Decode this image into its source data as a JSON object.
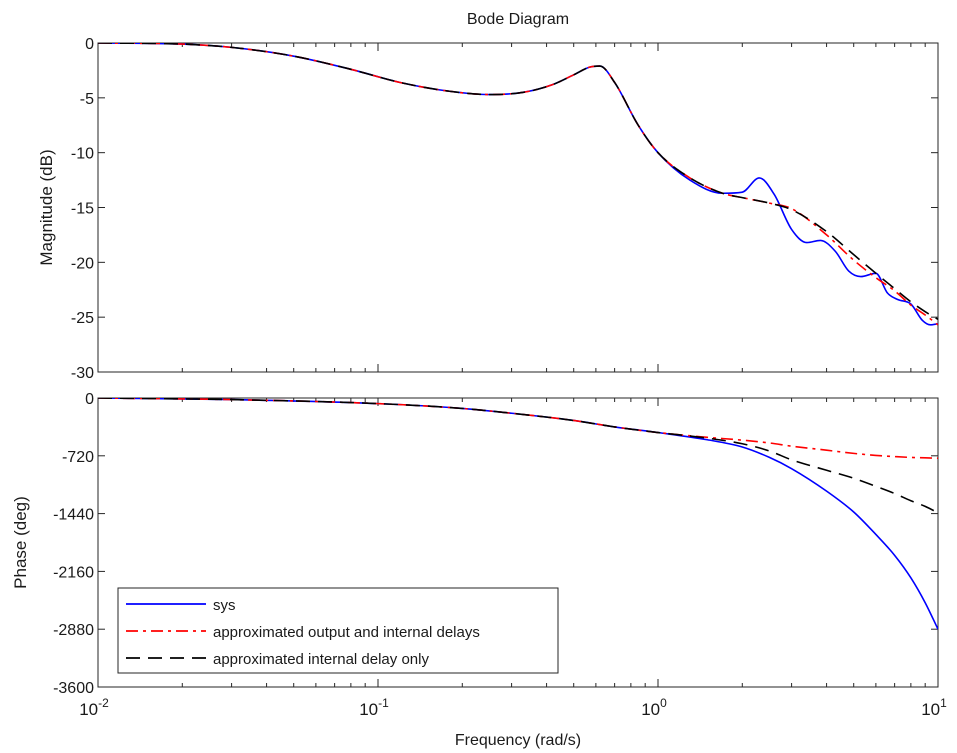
{
  "chart_data": {
    "type": "line",
    "title": "Bode Diagram",
    "xlabel": "Frequency  (rad/s)",
    "x_scale": "log",
    "xlim": [
      0.01,
      10
    ],
    "x_ticks": [
      {
        "value": 0.01,
        "base": "10",
        "exp": "-2"
      },
      {
        "value": 0.1,
        "base": "10",
        "exp": "-1"
      },
      {
        "value": 1,
        "base": "10",
        "exp": "0"
      },
      {
        "value": 10,
        "base": "10",
        "exp": "1"
      }
    ],
    "grid": false,
    "legend_position": "bottom-left",
    "series_styles": [
      {
        "name": "sys",
        "color": "#0000ff",
        "dash": "none"
      },
      {
        "name": "approximated output and internal delays",
        "color": "#ff0000",
        "dash": "dashdot"
      },
      {
        "name": "approximated internal delay only",
        "color": "#000000",
        "dash": "dashed"
      }
    ],
    "panels": [
      {
        "ylabel": "Magnitude (dB)",
        "ylim": [
          -30,
          0
        ],
        "y_ticks": [
          0,
          -5,
          -10,
          -15,
          -20,
          -25,
          -30
        ],
        "series": [
          {
            "name": "sys",
            "x": [
              0.01,
              0.02,
              0.03,
              0.05,
              0.08,
              0.12,
              0.18,
              0.25,
              0.33,
              0.42,
              0.5,
              0.57,
              0.62,
              0.7,
              0.85,
              1.0,
              1.3,
              1.7,
              2.0,
              2.3,
              2.6,
              3.0,
              3.4,
              3.8,
              4.3,
              4.8,
              5.3,
              6.0,
              6.6,
              7.2,
              8.0,
              8.8,
              9.4,
              10
            ],
            "y": [
              0,
              -0.1,
              -0.4,
              -1.2,
              -2.4,
              -3.6,
              -4.4,
              -4.7,
              -4.5,
              -3.8,
              -2.9,
              -2.2,
              -2.1,
              -3.6,
              -7.5,
              -10.0,
              -12.5,
              -13.7,
              -13.6,
              -12.3,
              -13.8,
              -17.0,
              -18.2,
              -18.0,
              -19.0,
              -20.8,
              -21.3,
              -21.0,
              -22.8,
              -23.4,
              -23.8,
              -25.3,
              -25.7,
              -25.6
            ]
          },
          {
            "name": "approximated output and internal delays",
            "x": [
              0.01,
              0.02,
              0.03,
              0.05,
              0.08,
              0.12,
              0.18,
              0.25,
              0.33,
              0.42,
              0.5,
              0.57,
              0.62,
              0.7,
              0.85,
              1.0,
              1.3,
              1.7,
              2.0,
              2.5,
              3.0,
              4.0,
              5.0,
              6.0,
              7.0,
              8.0,
              9.0,
              10
            ],
            "y": [
              0,
              -0.1,
              -0.4,
              -1.2,
              -2.4,
              -3.6,
              -4.4,
              -4.7,
              -4.5,
              -3.8,
              -2.9,
              -2.2,
              -2.1,
              -3.6,
              -7.5,
              -10.0,
              -12.3,
              -13.7,
              -14.1,
              -14.6,
              -15.1,
              -17.5,
              -19.8,
              -21.4,
              -22.6,
              -23.9,
              -24.8,
              -25.7
            ]
          },
          {
            "name": "approximated internal delay only",
            "x": [
              0.01,
              0.02,
              0.03,
              0.05,
              0.08,
              0.12,
              0.18,
              0.25,
              0.33,
              0.42,
              0.5,
              0.57,
              0.62,
              0.7,
              0.85,
              1.0,
              1.3,
              1.7,
              2.0,
              2.5,
              3.0,
              4.0,
              5.0,
              6.0,
              7.0,
              8.0,
              9.0,
              10
            ],
            "y": [
              0,
              -0.1,
              -0.4,
              -1.2,
              -2.4,
              -3.6,
              -4.4,
              -4.7,
              -4.5,
              -3.8,
              -2.9,
              -2.2,
              -2.1,
              -3.6,
              -7.5,
              -10.0,
              -12.3,
              -13.7,
              -14.1,
              -14.6,
              -15.2,
              -17.2,
              -19.3,
              -21.0,
              -22.4,
              -23.6,
              -24.5,
              -25.2
            ]
          }
        ]
      },
      {
        "ylabel": "Phase (deg)",
        "ylim": [
          -3600,
          0
        ],
        "y_ticks": [
          0,
          -720,
          -1440,
          -2160,
          -2880,
          -3600
        ],
        "series": [
          {
            "name": "sys",
            "x": [
              0.01,
              0.03,
              0.1,
              0.2,
              0.3,
              0.5,
              0.7,
              1.0,
              1.5,
              2.0,
              2.5,
              3.0,
              4.0,
              5.0,
              6.0,
              7.0,
              8.0,
              9.0,
              10
            ],
            "y": [
              0,
              -20,
              -70,
              -130,
              -190,
              -280,
              -360,
              -430,
              -520,
              -610,
              -740,
              -880,
              -1160,
              -1420,
              -1700,
              -1960,
              -2240,
              -2550,
              -2880
            ]
          },
          {
            "name": "approximated output and internal delays",
            "x": [
              0.01,
              0.03,
              0.1,
              0.2,
              0.3,
              0.5,
              0.7,
              1.0,
              1.5,
              2.0,
              2.5,
              3.0,
              4.0,
              5.0,
              6.0,
              7.0,
              8.0,
              9.0,
              10
            ],
            "y": [
              0,
              -20,
              -70,
              -130,
              -190,
              -280,
              -360,
              -430,
              -490,
              -525,
              -560,
              -600,
              -650,
              -690,
              -715,
              -730,
              -740,
              -745,
              -750
            ]
          },
          {
            "name": "approximated internal delay only",
            "x": [
              0.01,
              0.03,
              0.1,
              0.2,
              0.3,
              0.5,
              0.7,
              1.0,
              1.5,
              2.0,
              2.5,
              3.0,
              4.0,
              5.0,
              6.0,
              7.0,
              8.0,
              9.0,
              10
            ],
            "y": [
              0,
              -20,
              -70,
              -130,
              -190,
              -280,
              -360,
              -430,
              -500,
              -570,
              -660,
              -770,
              -900,
              -1000,
              -1100,
              -1190,
              -1280,
              -1350,
              -1430
            ]
          }
        ]
      }
    ]
  }
}
